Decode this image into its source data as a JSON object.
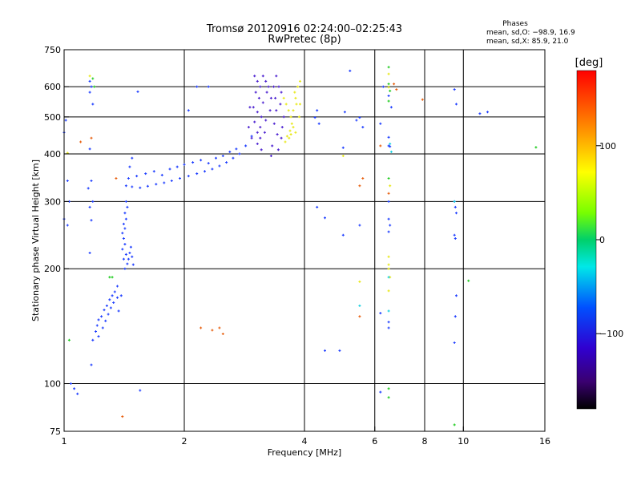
{
  "header": {
    "title_line1": "Tromsø 20120916 02:24:00–02:25:43",
    "title_line2": "RwPretec (8p)",
    "stats_title": "Phases",
    "stats_line1": "mean, sd,O: −98.9, 16.9",
    "stats_line2": "mean, sd,X:  85.9, 21.0"
  },
  "chart_data": {
    "type": "scatter",
    "xlabel": "Frequency [MHz]",
    "ylabel": "Stationary phase Virtual Height [km]",
    "x_scale": "log",
    "y_scale": "log",
    "xlim": [
      1,
      16
    ],
    "ylim": [
      75,
      750
    ],
    "x_ticks": [
      1,
      2,
      4,
      6,
      8,
      10,
      16
    ],
    "x_tick_labels": [
      "1",
      "2",
      "4",
      "6",
      "8",
      "10",
      "16"
    ],
    "y_ticks": [
      75,
      100,
      200,
      300,
      400,
      500,
      600,
      750
    ],
    "y_tick_labels": [
      "75",
      "100",
      "200",
      "300",
      "400",
      "500",
      "600",
      "750"
    ],
    "grid_x": [
      2,
      4,
      6,
      8,
      10
    ],
    "grid_y": [
      100,
      200,
      300,
      400,
      500,
      600
    ],
    "colorbar": {
      "label": "[deg]",
      "range": [
        -180,
        180
      ],
      "ticks": [
        100,
        0,
        -100
      ],
      "tick_labels": [
        "100",
        "0",
        "−100"
      ]
    },
    "series": [
      {
        "color": "#1f3fff",
        "points": [
          [
            1.43,
            330
          ],
          [
            1.48,
            328
          ],
          [
            1.55,
            326
          ],
          [
            1.62,
            329
          ],
          [
            1.7,
            333
          ],
          [
            1.78,
            336
          ],
          [
            1.86,
            340
          ],
          [
            1.95,
            345
          ],
          [
            2.05,
            350
          ],
          [
            2.15,
            355
          ],
          [
            2.25,
            360
          ],
          [
            2.35,
            365
          ],
          [
            2.45,
            372
          ],
          [
            2.55,
            380
          ],
          [
            2.65,
            390
          ],
          [
            2.75,
            400
          ],
          [
            2.85,
            420
          ],
          [
            2.95,
            445
          ],
          [
            1.45,
            345
          ],
          [
            1.52,
            350
          ],
          [
            1.6,
            355
          ],
          [
            1.68,
            360
          ],
          [
            1.76,
            352
          ],
          [
            1.84,
            365
          ],
          [
            1.92,
            370
          ],
          [
            2.0,
            375
          ],
          [
            2.1,
            380
          ],
          [
            2.2,
            385
          ],
          [
            2.3,
            378
          ],
          [
            2.4,
            390
          ],
          [
            2.5,
            395
          ],
          [
            2.6,
            405
          ],
          [
            2.7,
            412
          ],
          [
            1.46,
            370
          ],
          [
            1.48,
            390
          ],
          [
            1.43,
            300
          ],
          [
            1.44,
            290
          ],
          [
            1.42,
            280
          ],
          [
            1.43,
            270
          ],
          [
            1.41,
            262
          ],
          [
            1.42,
            255
          ],
          [
            1.4,
            248
          ],
          [
            1.41,
            240
          ],
          [
            1.42,
            232
          ],
          [
            1.4,
            225
          ],
          [
            1.43,
            218
          ],
          [
            1.41,
            212
          ],
          [
            1.44,
            206
          ],
          [
            1.42,
            200
          ],
          [
            1.45,
            212
          ],
          [
            1.46,
            220
          ],
          [
            1.47,
            228
          ],
          [
            1.48,
            215
          ],
          [
            1.49,
            205
          ],
          [
            1.36,
            180
          ],
          [
            1.34,
            174
          ],
          [
            1.32,
            170
          ],
          [
            1.3,
            166
          ],
          [
            1.28,
            160
          ],
          [
            1.26,
            156
          ],
          [
            1.24,
            150
          ],
          [
            1.22,
            147
          ],
          [
            1.21,
            142
          ],
          [
            1.2,
            137
          ],
          [
            1.22,
            133
          ],
          [
            1.25,
            140
          ],
          [
            1.27,
            146
          ],
          [
            1.29,
            152
          ],
          [
            1.31,
            158
          ],
          [
            1.33,
            163
          ],
          [
            1.36,
            168
          ],
          [
            1.39,
            170
          ],
          [
            1.37,
            155
          ],
          [
            1.18,
            130
          ],
          [
            1.16,
            620
          ],
          [
            1.17,
            600
          ],
          [
            1.16,
            580
          ],
          [
            1.18,
            540
          ],
          [
            1.16,
            412
          ],
          [
            1.17,
            340
          ],
          [
            1.15,
            325
          ],
          [
            1.18,
            300
          ],
          [
            1.16,
            290
          ],
          [
            1.17,
            268
          ],
          [
            1.16,
            220
          ],
          [
            1.17,
            112
          ],
          [
            1.01,
            490
          ],
          [
            1.0,
            455
          ],
          [
            1.02,
            340
          ],
          [
            1.03,
            300
          ],
          [
            1.0,
            270
          ],
          [
            1.02,
            260
          ],
          [
            1.04,
            100
          ],
          [
            1.06,
            97
          ],
          [
            1.08,
            94
          ],
          [
            1.55,
            96
          ],
          [
            1.53,
            582
          ],
          [
            4.3,
            520
          ],
          [
            4.25,
            498
          ],
          [
            4.35,
            480
          ],
          [
            4.3,
            290
          ],
          [
            4.5,
            272
          ],
          [
            5.05,
            515
          ],
          [
            5.5,
            498
          ],
          [
            5.4,
            490
          ],
          [
            5.6,
            470
          ],
          [
            5.2,
            660
          ],
          [
            5.0,
            415
          ],
          [
            5.5,
            260
          ],
          [
            5.0,
            245
          ],
          [
            6.3,
            600
          ],
          [
            6.5,
            568
          ],
          [
            6.6,
            530
          ],
          [
            6.2,
            480
          ],
          [
            6.5,
            442
          ],
          [
            6.5,
            420
          ],
          [
            6.55,
            418
          ],
          [
            6.5,
            300
          ],
          [
            6.5,
            270
          ],
          [
            6.55,
            260
          ],
          [
            6.5,
            250
          ],
          [
            6.2,
            153
          ],
          [
            6.5,
            145
          ],
          [
            6.5,
            140
          ],
          [
            6.2,
            95
          ],
          [
            4.5,
            122
          ],
          [
            4.9,
            122
          ],
          [
            9.5,
            590
          ],
          [
            9.6,
            540
          ],
          [
            9.5,
            300
          ],
          [
            9.55,
            290
          ],
          [
            9.6,
            280
          ],
          [
            9.5,
            245
          ],
          [
            9.55,
            240
          ],
          [
            9.6,
            170
          ],
          [
            9.55,
            150
          ],
          [
            9.5,
            128
          ],
          [
            11.0,
            510
          ],
          [
            11.5,
            515
          ],
          [
            2.05,
            520
          ],
          [
            2.3,
            600
          ],
          [
            2.15,
            600
          ]
        ]
      },
      {
        "color": "#4a1fd0",
        "points": [
          [
            3.0,
            640
          ],
          [
            3.05,
            620
          ],
          [
            3.1,
            600
          ],
          [
            3.02,
            580
          ],
          [
            3.08,
            560
          ],
          [
            3.15,
            545
          ],
          [
            2.98,
            530
          ],
          [
            3.05,
            515
          ],
          [
            3.12,
            500
          ],
          [
            3.0,
            485
          ],
          [
            3.1,
            470
          ],
          [
            3.18,
            455
          ],
          [
            2.95,
            440
          ],
          [
            3.05,
            425
          ],
          [
            3.12,
            410
          ],
          [
            2.9,
            470
          ],
          [
            2.92,
            530
          ],
          [
            3.2,
            620
          ],
          [
            3.25,
            600
          ],
          [
            3.3,
            560
          ],
          [
            3.15,
            640
          ],
          [
            3.22,
            580
          ],
          [
            3.28,
            520
          ],
          [
            3.2,
            490
          ],
          [
            3.1,
            440
          ],
          [
            3.05,
            455
          ],
          [
            3.35,
            600
          ],
          [
            3.38,
            560
          ],
          [
            3.4,
            520
          ],
          [
            3.36,
            480
          ],
          [
            3.42,
            450
          ],
          [
            3.32,
            420
          ],
          [
            3.45,
            600
          ],
          [
            3.4,
            640
          ],
          [
            3.5,
            580
          ],
          [
            3.48,
            540
          ],
          [
            3.55,
            500
          ],
          [
            3.52,
            470
          ],
          [
            3.5,
            440
          ],
          [
            3.44,
            410
          ],
          [
            3.3,
            395
          ]
        ]
      },
      {
        "color": "#e8e818",
        "points": [
          [
            3.55,
            560
          ],
          [
            3.6,
            540
          ],
          [
            3.65,
            520
          ],
          [
            3.7,
            500
          ],
          [
            3.72,
            480
          ],
          [
            3.68,
            460
          ],
          [
            3.62,
            445
          ],
          [
            3.58,
            430
          ],
          [
            3.75,
            520
          ],
          [
            3.8,
            560
          ],
          [
            3.85,
            600
          ],
          [
            3.78,
            580
          ],
          [
            3.82,
            540
          ],
          [
            3.9,
            620
          ],
          [
            3.88,
            500
          ],
          [
            3.75,
            470
          ],
          [
            3.7,
            450
          ],
          [
            3.66,
            440
          ],
          [
            3.8,
            455
          ],
          [
            3.9,
            540
          ],
          [
            1.16,
            640
          ],
          [
            1.02,
            402
          ],
          [
            5.0,
            395
          ],
          [
            6.5,
            648
          ],
          [
            6.5,
            598
          ],
          [
            6.55,
            330
          ],
          [
            6.5,
            215
          ],
          [
            6.5,
            205
          ],
          [
            6.5,
            200
          ],
          [
            6.55,
            190
          ],
          [
            6.5,
            175
          ],
          [
            5.5,
            185
          ]
        ]
      },
      {
        "color": "#22cc22",
        "points": [
          [
            1.18,
            630
          ],
          [
            1.19,
            600
          ],
          [
            1.3,
            190
          ],
          [
            1.32,
            190
          ],
          [
            6.5,
            675
          ],
          [
            6.5,
            550
          ],
          [
            6.5,
            610
          ],
          [
            6.55,
            585
          ],
          [
            6.5,
            345
          ],
          [
            6.5,
            97
          ],
          [
            6.5,
            92
          ],
          [
            9.5,
            78
          ],
          [
            10.3,
            186
          ],
          [
            15.2,
            416
          ],
          [
            1.03,
            130
          ]
        ]
      },
      {
        "color": "#e86010",
        "points": [
          [
            1.1,
            430
          ],
          [
            1.17,
            440
          ],
          [
            1.35,
            345
          ],
          [
            2.5,
            135
          ],
          [
            2.35,
            138
          ],
          [
            2.45,
            140
          ],
          [
            2.2,
            140
          ],
          [
            5.6,
            345
          ],
          [
            5.5,
            330
          ],
          [
            6.5,
            315
          ],
          [
            7.9,
            555
          ],
          [
            6.2,
            420
          ],
          [
            5.5,
            150
          ],
          [
            6.8,
            590
          ],
          [
            6.7,
            610
          ],
          [
            1.4,
            82
          ]
        ]
      },
      {
        "color": "#18d0e0",
        "points": [
          [
            6.55,
            425
          ],
          [
            6.6,
            405
          ],
          [
            6.5,
            190
          ],
          [
            6.5,
            155
          ],
          [
            5.5,
            160
          ],
          [
            9.5,
            300
          ]
        ]
      }
    ]
  }
}
